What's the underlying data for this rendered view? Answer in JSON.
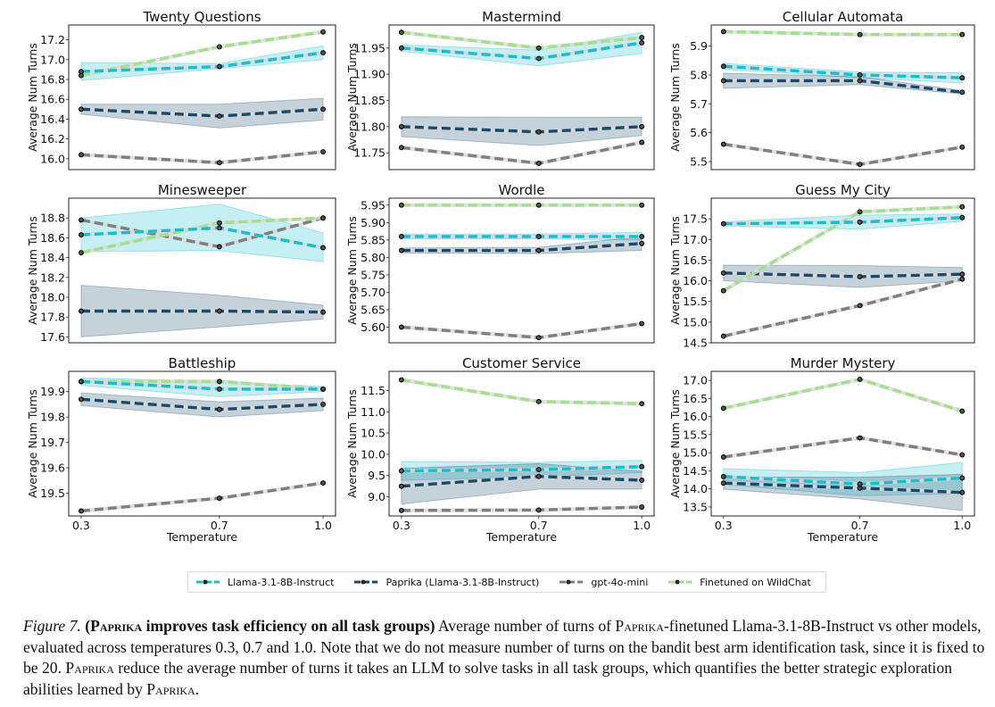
{
  "figure": {
    "legend": [
      {
        "name": "Llama-3.1-8B-Instruct",
        "color": "#17becf"
      },
      {
        "name": "Paprika (Llama-3.1-8B-Instruct)",
        "color": "#1a4a6b"
      },
      {
        "name": "gpt-4o-mini",
        "color": "#7f7f7f"
      },
      {
        "name": "Finetuned on WildChat",
        "color": "#a3e08a"
      }
    ],
    "caption": {
      "label": "Figure 7.",
      "bold_open": "(",
      "bold_sc": "Paprika",
      "bold_rest": " improves task efficiency on all task groups)",
      "line1_a": " Average number of turns of ",
      "line1_sc": "Paprika",
      "line1_b": "-finetuned Llama-3.1-8B-Instruct vs other models, evaluated across temperatures 0.3, 0.7 and 1.0. Note that we do not measure number of turns on the bandit best arm identification task, since it is fixed to be 20. ",
      "line2_sc": "Paprika",
      "line2_b": " reduce the average number of turns it takes an LLM to solve tasks in all task groups, which quantifies the better strategic exploration abilities learned by ",
      "line3_sc": "Paprika",
      "line3_end": "."
    }
  },
  "chart_data": [
    {
      "type": "line",
      "title": "Twenty Questions",
      "xlabel": "",
      "ylabel": "Average Num Turns",
      "x": [
        0.3,
        0.7,
        1.0
      ],
      "xticks": [],
      "ylim": [
        15.89,
        17.35
      ],
      "yticks": [
        16.0,
        16.2,
        16.4,
        16.6,
        16.8,
        17.0,
        17.2
      ],
      "ytick_labels": [
        "16.0",
        "16.2",
        "16.4",
        "16.6",
        "16.8",
        "17.0",
        "17.2"
      ],
      "series": [
        {
          "name": "Llama-3.1-8B-Instruct",
          "values": [
            16.88,
            16.93,
            17.07
          ],
          "band_low": [
            16.79,
            16.91,
            17.0
          ],
          "band_high": [
            16.97,
            16.96,
            17.14
          ]
        },
        {
          "name": "Paprika (Llama-3.1-8B-Instruct)",
          "values": [
            16.5,
            16.43,
            16.5
          ],
          "band_low": [
            16.45,
            16.31,
            16.39
          ],
          "band_high": [
            16.55,
            16.55,
            16.61
          ]
        },
        {
          "name": "gpt-4o-mini",
          "values": [
            16.04,
            15.96,
            16.07
          ]
        },
        {
          "name": "Finetuned on WildChat",
          "values": [
            16.84,
            17.13,
            17.28
          ]
        }
      ]
    },
    {
      "type": "line",
      "title": "Mastermind",
      "xlabel": "",
      "ylabel": "Average Num Turns",
      "x": [
        0.3,
        0.7,
        1.0
      ],
      "xticks": [],
      "ylim": [
        11.718,
        11.994
      ],
      "yticks": [
        11.75,
        11.8,
        11.85,
        11.9,
        11.95
      ],
      "ytick_labels": [
        "11.75",
        "11.80",
        "11.85",
        "11.90",
        "11.95"
      ],
      "series": [
        {
          "name": "Llama-3.1-8B-Instruct",
          "values": [
            11.95,
            11.93,
            11.96
          ],
          "band_low": [
            11.944,
            11.916,
            11.94
          ],
          "band_high": [
            11.956,
            11.946,
            11.98
          ]
        },
        {
          "name": "Paprika (Llama-3.1-8B-Instruct)",
          "values": [
            11.8,
            11.79,
            11.8
          ],
          "band_low": [
            11.781,
            11.764,
            11.783
          ],
          "band_high": [
            11.819,
            11.818,
            11.818
          ]
        },
        {
          "name": "gpt-4o-mini",
          "values": [
            11.76,
            11.73,
            11.77
          ]
        },
        {
          "name": "Finetuned on WildChat",
          "values": [
            11.98,
            11.95,
            11.97
          ]
        }
      ]
    },
    {
      "type": "line",
      "title": "Cellular Automata",
      "xlabel": "",
      "ylabel": "Average Num Turns",
      "x": [
        0.3,
        0.7,
        1.0
      ],
      "xticks": [],
      "ylim": [
        5.472,
        5.973
      ],
      "yticks": [
        5.5,
        5.6,
        5.7,
        5.8,
        5.9
      ],
      "ytick_labels": [
        "5.5",
        "5.6",
        "5.7",
        "5.8",
        "5.9"
      ],
      "series": [
        {
          "name": "Llama-3.1-8B-Instruct",
          "values": [
            5.83,
            5.8,
            5.79
          ],
          "band_low": [
            5.82,
            5.79,
            5.772
          ],
          "band_high": [
            5.84,
            5.81,
            5.808
          ]
        },
        {
          "name": "Paprika (Llama-3.1-8B-Instruct)",
          "values": [
            5.78,
            5.78,
            5.74
          ],
          "band_low": [
            5.754,
            5.766,
            5.734
          ],
          "band_high": [
            5.806,
            5.794,
            5.746
          ]
        },
        {
          "name": "gpt-4o-mini",
          "values": [
            5.56,
            5.49,
            5.55
          ]
        },
        {
          "name": "Finetuned on WildChat",
          "values": [
            5.95,
            5.94,
            5.94
          ]
        }
      ]
    },
    {
      "type": "line",
      "title": "Minesweeper",
      "xlabel": "",
      "ylabel": "Average Num Turns",
      "x": [
        0.3,
        0.7,
        1.0
      ],
      "xticks": [],
      "ylim": [
        17.54,
        19.0
      ],
      "yticks": [
        17.6,
        17.8,
        18.0,
        18.2,
        18.4,
        18.6,
        18.8
      ],
      "ytick_labels": [
        "17.6",
        "17.8",
        "18.0",
        "18.2",
        "18.4",
        "18.6",
        "18.8"
      ],
      "series": [
        {
          "name": "Llama-3.1-8B-Instruct",
          "values": [
            18.63,
            18.7,
            18.5
          ],
          "band_low": [
            18.46,
            18.47,
            18.36
          ],
          "band_high": [
            18.8,
            18.94,
            18.65
          ]
        },
        {
          "name": "Paprika (Llama-3.1-8B-Instruct)",
          "values": [
            17.86,
            17.86,
            17.85
          ],
          "band_low": [
            17.6,
            17.7,
            17.78
          ],
          "band_high": [
            18.12,
            18.02,
            17.92
          ]
        },
        {
          "name": "gpt-4o-mini",
          "values": [
            18.78,
            18.51,
            18.8
          ]
        },
        {
          "name": "Finetuned on WildChat",
          "values": [
            18.45,
            18.75,
            18.8
          ]
        }
      ]
    },
    {
      "type": "line",
      "title": "Wordle",
      "xlabel": "",
      "ylabel": "Average Num Turns",
      "x": [
        0.3,
        0.7,
        1.0
      ],
      "xticks": [],
      "ylim": [
        5.555,
        5.97
      ],
      "yticks": [
        5.6,
        5.65,
        5.7,
        5.75,
        5.8,
        5.85,
        5.9,
        5.95
      ],
      "ytick_labels": [
        "5.60",
        "5.65",
        "5.70",
        "5.75",
        "5.80",
        "5.85",
        "5.90",
        "5.95"
      ],
      "series": [
        {
          "name": "Llama-3.1-8B-Instruct",
          "values": [
            5.86,
            5.86,
            5.86
          ],
          "band_low": [
            5.853,
            5.853,
            5.85
          ],
          "band_high": [
            5.867,
            5.867,
            5.872
          ]
        },
        {
          "name": "Paprika (Llama-3.1-8B-Instruct)",
          "values": [
            5.82,
            5.82,
            5.84
          ],
          "band_low": [
            5.813,
            5.811,
            5.82
          ],
          "band_high": [
            5.827,
            5.829,
            5.86
          ]
        },
        {
          "name": "gpt-4o-mini",
          "values": [
            5.6,
            5.57,
            5.61
          ]
        },
        {
          "name": "Finetuned on WildChat",
          "values": [
            5.95,
            5.95,
            5.95
          ]
        }
      ]
    },
    {
      "type": "line",
      "title": "Guess My City",
      "xlabel": "",
      "ylabel": "Average Num Turns",
      "x": [
        0.3,
        0.7,
        1.0
      ],
      "xticks": [],
      "ylim": [
        14.5,
        18.0
      ],
      "yticks": [
        14.5,
        15.0,
        15.5,
        16.0,
        16.5,
        17.0,
        17.5
      ],
      "ytick_labels": [
        "14.5",
        "15.0",
        "15.5",
        "16.0",
        "16.5",
        "17.0",
        "17.5"
      ],
      "series": [
        {
          "name": "Llama-3.1-8B-Instruct",
          "values": [
            17.38,
            17.42,
            17.53
          ],
          "band_low": [
            17.33,
            17.25,
            17.44
          ],
          "band_high": [
            17.43,
            17.59,
            17.62
          ]
        },
        {
          "name": "Paprika (Llama-3.1-8B-Instruct)",
          "values": [
            16.19,
            16.1,
            16.16
          ],
          "band_low": [
            16.0,
            15.84,
            16.0
          ],
          "band_high": [
            16.38,
            16.37,
            16.32
          ]
        },
        {
          "name": "gpt-4o-mini",
          "values": [
            14.66,
            15.4,
            16.04
          ]
        },
        {
          "name": "Finetuned on WildChat",
          "values": [
            15.76,
            17.67,
            17.79
          ]
        }
      ]
    },
    {
      "type": "line",
      "title": "Battleship",
      "xlabel": "Temperature",
      "ylabel": "Average Num Turns",
      "x": [
        0.3,
        0.7,
        1.0
      ],
      "xticks": [
        "0.3",
        "0.7",
        "1.0"
      ],
      "ylim": [
        19.41,
        19.98
      ],
      "yticks": [
        19.5,
        19.6,
        19.7,
        19.8,
        19.9
      ],
      "ytick_labels": [
        "19.5",
        "19.6",
        "19.7",
        "19.8",
        "19.9"
      ],
      "series": [
        {
          "name": "Llama-3.1-8B-Instruct",
          "values": [
            19.94,
            19.91,
            19.91
          ],
          "band_low": [
            19.925,
            19.88,
            19.9
          ],
          "band_high": [
            19.955,
            19.94,
            19.92
          ]
        },
        {
          "name": "Paprika (Llama-3.1-8B-Instruct)",
          "values": [
            19.87,
            19.83,
            19.85
          ],
          "band_low": [
            19.845,
            19.8,
            19.825
          ],
          "band_high": [
            19.895,
            19.86,
            19.875
          ]
        },
        {
          "name": "gpt-4o-mini",
          "values": [
            19.43,
            19.48,
            19.54
          ]
        },
        {
          "name": "Finetuned on WildChat",
          "values": [
            19.94,
            19.94,
            19.91
          ]
        }
      ]
    },
    {
      "type": "line",
      "title": "Customer Service",
      "xlabel": "Temperature",
      "ylabel": "Average Num Turns",
      "x": [
        0.3,
        0.7,
        1.0
      ],
      "xticks": [
        "0.3",
        "0.7",
        "1.0"
      ],
      "ylim": [
        8.55,
        11.95
      ],
      "yticks": [
        9.0,
        9.5,
        10.0,
        10.5,
        11.0,
        11.5
      ],
      "ytick_labels": [
        "9.0",
        "9.5",
        "10.0",
        "10.5",
        "11.0",
        "11.5"
      ],
      "series": [
        {
          "name": "Llama-3.1-8B-Instruct",
          "values": [
            9.61,
            9.64,
            9.71
          ],
          "band_low": [
            9.39,
            9.47,
            9.57
          ],
          "band_high": [
            9.83,
            9.81,
            9.86
          ]
        },
        {
          "name": "Paprika (Llama-3.1-8B-Instruct)",
          "values": [
            9.25,
            9.48,
            9.39
          ],
          "band_low": [
            8.83,
            9.18,
            9.18
          ],
          "band_high": [
            9.67,
            9.78,
            9.6
          ]
        },
        {
          "name": "gpt-4o-mini",
          "values": [
            8.68,
            8.69,
            8.76
          ]
        },
        {
          "name": "Finetuned on WildChat",
          "values": [
            11.75,
            11.24,
            11.19
          ]
        }
      ]
    },
    {
      "type": "line",
      "title": "Murder Mystery",
      "xlabel": "Temperature",
      "ylabel": "Average Num Turns",
      "x": [
        0.3,
        0.7,
        1.0
      ],
      "xticks": [
        "0.3",
        "0.7",
        "1.0"
      ],
      "ylim": [
        13.25,
        17.25
      ],
      "yticks": [
        13.5,
        14.0,
        14.5,
        15.0,
        15.5,
        16.0,
        16.5,
        17.0
      ],
      "ytick_labels": [
        "13.5",
        "14.0",
        "14.5",
        "15.0",
        "15.5",
        "16.0",
        "16.5",
        "17.0"
      ],
      "series": [
        {
          "name": "Llama-3.1-8B-Instruct",
          "values": [
            14.34,
            14.13,
            14.3
          ],
          "band_low": [
            14.12,
            13.81,
            13.87
          ],
          "band_high": [
            14.56,
            14.45,
            14.73
          ]
        },
        {
          "name": "Paprika (Llama-3.1-8B-Instruct)",
          "values": [
            14.16,
            14.02,
            13.9
          ],
          "band_low": [
            13.99,
            13.72,
            13.4
          ],
          "band_high": [
            14.33,
            14.32,
            14.4
          ]
        },
        {
          "name": "gpt-4o-mini",
          "values": [
            14.88,
            15.41,
            14.94
          ]
        },
        {
          "name": "Finetuned on WildChat",
          "values": [
            16.23,
            17.03,
            16.15
          ]
        }
      ]
    }
  ]
}
